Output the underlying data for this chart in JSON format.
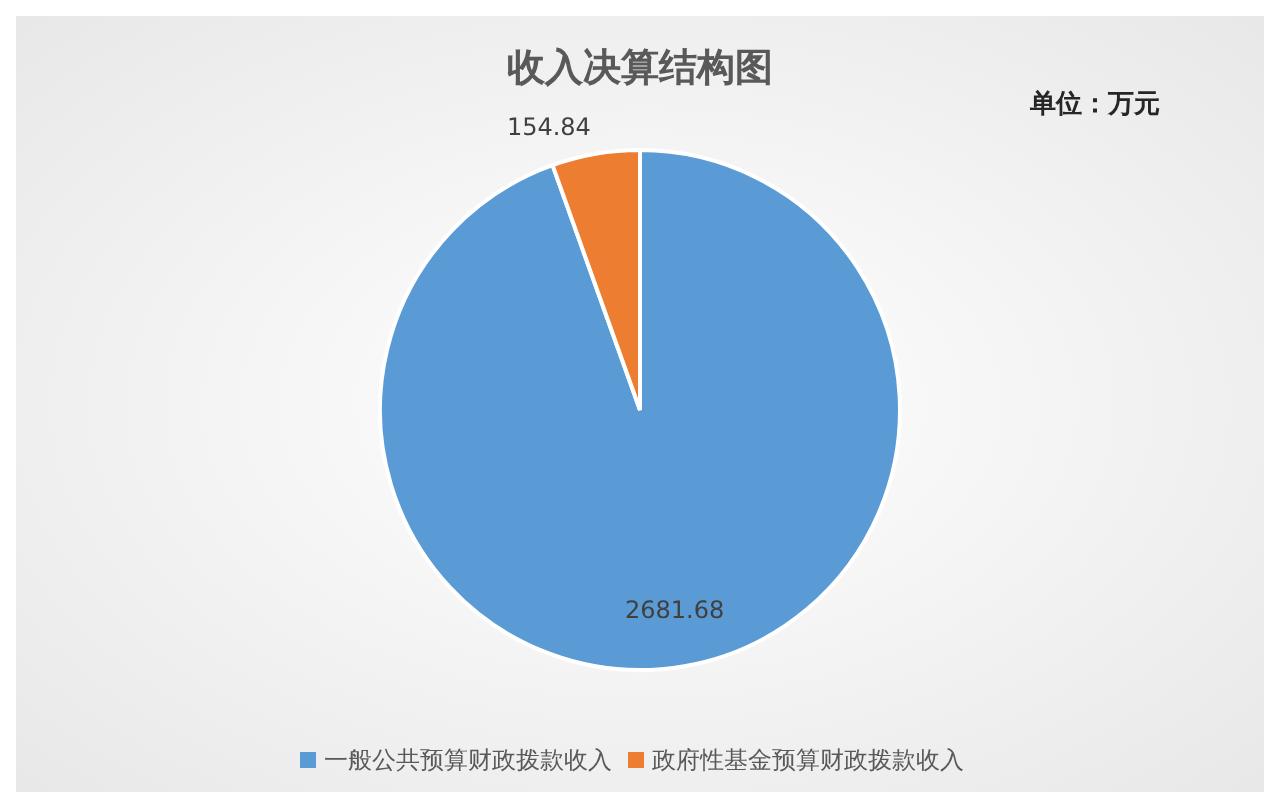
{
  "chart_data": {
    "type": "pie",
    "title": "收入决算结构图",
    "annotations": [
      "单位：万元"
    ],
    "categories": [
      "一般公共预算财政拨款收入",
      "政府性基金预算财政拨款收入"
    ],
    "values": [
      2681.68,
      154.84
    ],
    "colors": [
      "#5b9bd5",
      "#ed7d31"
    ],
    "data_labels": true,
    "legend": "bottom"
  }
}
